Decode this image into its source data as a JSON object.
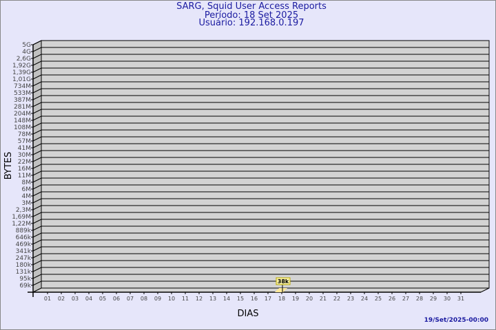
{
  "title": "SARG, Squid User Access Reports",
  "subtitle1": "Período: 18 Set 2025",
  "subtitle2": "Usuário: 192.168.0.197",
  "footer": "19/Set/2025-00:00",
  "colors": {
    "background": "#e6e6fa",
    "wall": "#d3d3d3",
    "bar": "#fde99a",
    "title": "#1a1aa0"
  },
  "chart_data": {
    "type": "bar",
    "xlabel": "DIAS",
    "ylabel": "BYTES",
    "y_scale": "log",
    "y_ticks": [
      "5G",
      "4G",
      "2,6G",
      "1,92G",
      "1,39G",
      "1,01G",
      "734M",
      "533M",
      "387M",
      "281M",
      "204M",
      "148M",
      "108M",
      "78M",
      "57M",
      "41M",
      "30M",
      "22M",
      "16M",
      "11M",
      "8M",
      "6M",
      "4M",
      "3M",
      "2,3M",
      "1,69M",
      "1,22M",
      "889k",
      "646k",
      "469k",
      "341k",
      "247k",
      "180k",
      "131k",
      "95k",
      "69k"
    ],
    "categories": [
      "01",
      "02",
      "03",
      "04",
      "05",
      "06",
      "07",
      "08",
      "09",
      "10",
      "11",
      "12",
      "13",
      "14",
      "15",
      "16",
      "17",
      "18",
      "19",
      "20",
      "21",
      "22",
      "23",
      "24",
      "25",
      "26",
      "27",
      "28",
      "29",
      "30",
      "31"
    ],
    "values": [
      0,
      0,
      0,
      0,
      0,
      0,
      0,
      0,
      0,
      0,
      0,
      0,
      0,
      0,
      0,
      0,
      0,
      38000,
      0,
      0,
      0,
      0,
      0,
      0,
      0,
      0,
      0,
      0,
      0,
      0,
      0
    ],
    "data_labels": [
      {
        "category": "18",
        "text": "38k"
      }
    ],
    "grid": true
  }
}
